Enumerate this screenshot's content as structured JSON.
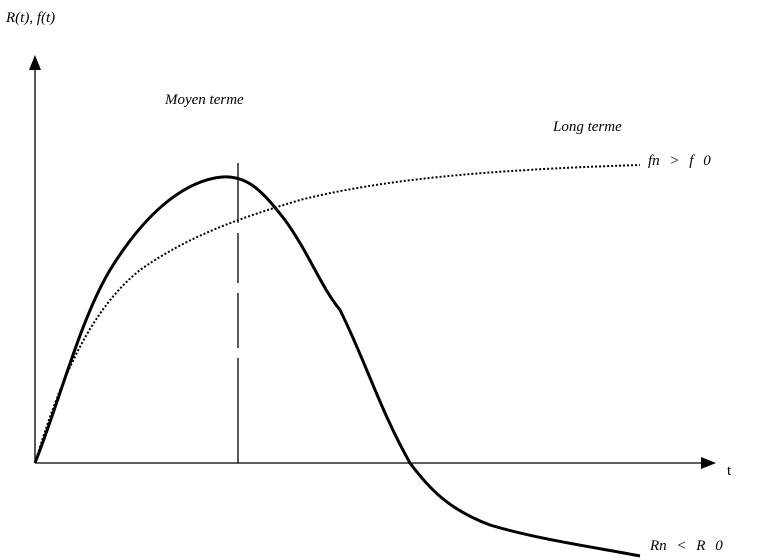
{
  "axes": {
    "y_label": "R(t), f(t)",
    "x_label": "t"
  },
  "zones": {
    "medium": "Moyen terme",
    "long": "Long terme"
  },
  "curves": {
    "f_label": "fn > f 0",
    "r_label": "Rn < R 0"
  }
}
